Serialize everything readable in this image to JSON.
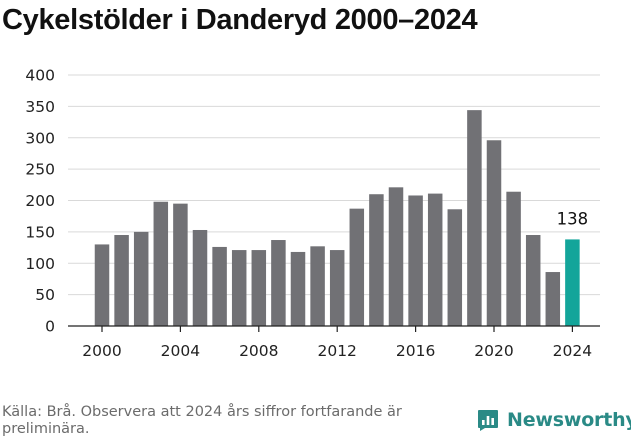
{
  "chart_data": {
    "type": "bar",
    "title": "Cykelstölder i Danderyd 2000–2024",
    "xlabel": "",
    "ylabel": "",
    "categories": [
      2000,
      2001,
      2002,
      2003,
      2004,
      2005,
      2006,
      2007,
      2008,
      2009,
      2010,
      2011,
      2012,
      2013,
      2014,
      2015,
      2016,
      2017,
      2018,
      2019,
      2020,
      2021,
      2022,
      2023,
      2024
    ],
    "values": [
      130,
      145,
      150,
      198,
      195,
      153,
      126,
      121,
      121,
      137,
      118,
      127,
      121,
      187,
      210,
      221,
      208,
      211,
      186,
      344,
      296,
      214,
      145,
      86,
      138
    ],
    "ylim": [
      0,
      400
    ],
    "yticks": [
      0,
      50,
      100,
      150,
      200,
      250,
      300,
      350,
      400
    ],
    "xticks": [
      2000,
      2004,
      2008,
      2012,
      2016,
      2020,
      2024
    ],
    "highlight": {
      "category": 2024,
      "label": "138"
    },
    "grid": true,
    "legend": "none",
    "colors": {
      "bar": "#717175",
      "highlight": "#13a59a",
      "grid": "#d9d9d9",
      "axis": "#222222"
    }
  },
  "footer": {
    "source": "Källa: Brå. Observera att 2024 års siffror fortfarande är preliminära.",
    "brand": "Newsworthy",
    "brand_icon": "newsworthy-logo-icon",
    "brand_color": "#2a8a86"
  }
}
